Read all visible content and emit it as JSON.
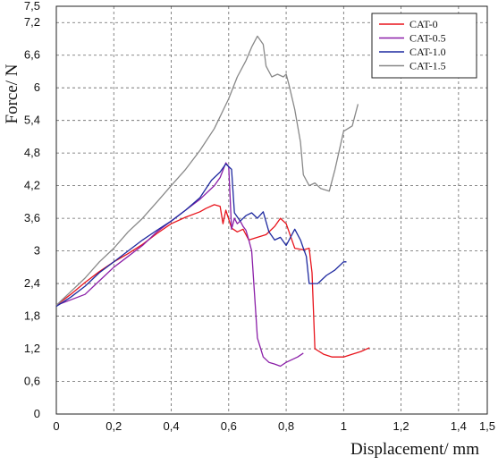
{
  "chart_data": {
    "type": "line",
    "title": "",
    "xlabel": "Displacement/ mm",
    "ylabel": "Force/ N",
    "xlim": [
      0,
      1.5
    ],
    "ylim": [
      0,
      7.5
    ],
    "grid": true,
    "grid_style": "dashed",
    "legend_position": "top-right",
    "x_ticks": [
      0,
      0.2,
      0.4,
      0.6,
      0.8,
      1,
      1.2,
      1.4,
      1.5
    ],
    "x_tick_labels": [
      "0",
      "0,2",
      "0,4",
      "0,6",
      "0,8",
      "1",
      "1,2",
      "1,4",
      "1,5"
    ],
    "y_ticks": [
      0,
      0.6,
      1.2,
      1.8,
      2.4,
      3,
      3.6,
      4.2,
      4.8,
      5.4,
      6,
      6.6,
      7.2,
      7.5
    ],
    "y_tick_labels": [
      "0",
      "0,6",
      "1,2",
      "1,8",
      "2,4",
      "3",
      "3,6",
      "4,2",
      "4,8",
      "5,4",
      "6",
      "6,6",
      "7,2",
      "7,5"
    ],
    "series": [
      {
        "name": "CAT-0",
        "color": "#e8141c",
        "x": [
          0.0,
          0.05,
          0.1,
          0.15,
          0.2,
          0.25,
          0.3,
          0.35,
          0.4,
          0.45,
          0.5,
          0.52,
          0.55,
          0.57,
          0.58,
          0.59,
          0.61,
          0.63,
          0.65,
          0.67,
          0.7,
          0.73,
          0.76,
          0.78,
          0.8,
          0.81,
          0.83,
          0.86,
          0.88,
          0.89,
          0.9,
          0.93,
          0.96,
          1.0,
          1.03,
          1.06,
          1.09
        ],
        "y": [
          2.0,
          2.2,
          2.42,
          2.62,
          2.8,
          2.95,
          3.12,
          3.32,
          3.5,
          3.62,
          3.72,
          3.78,
          3.85,
          3.82,
          3.5,
          3.75,
          3.42,
          3.35,
          3.4,
          3.2,
          3.25,
          3.3,
          3.45,
          3.6,
          3.5,
          3.35,
          3.05,
          3.02,
          3.05,
          2.6,
          1.2,
          1.1,
          1.05,
          1.05,
          1.1,
          1.15,
          1.22
        ]
      },
      {
        "name": "CAT-0.5",
        "color": "#8b1fa8",
        "x": [
          0.0,
          0.05,
          0.1,
          0.15,
          0.2,
          0.25,
          0.3,
          0.35,
          0.4,
          0.45,
          0.5,
          0.55,
          0.57,
          0.59,
          0.6,
          0.61,
          0.62,
          0.63,
          0.64,
          0.65,
          0.66,
          0.67,
          0.68,
          0.69,
          0.7,
          0.72,
          0.74,
          0.76,
          0.78,
          0.8,
          0.82,
          0.84,
          0.86
        ],
        "y": [
          2.0,
          2.1,
          2.2,
          2.45,
          2.7,
          2.9,
          3.1,
          3.35,
          3.55,
          3.75,
          3.95,
          4.2,
          4.35,
          4.62,
          4.55,
          3.4,
          3.6,
          3.5,
          3.55,
          3.45,
          3.38,
          3.2,
          3.0,
          2.2,
          1.4,
          1.05,
          0.95,
          0.92,
          0.88,
          0.95,
          1.0,
          1.05,
          1.12
        ]
      },
      {
        "name": "CAT-1.0",
        "color": "#1f2aa0",
        "x": [
          0.0,
          0.05,
          0.1,
          0.15,
          0.2,
          0.25,
          0.3,
          0.35,
          0.4,
          0.45,
          0.5,
          0.54,
          0.57,
          0.59,
          0.6,
          0.61,
          0.62,
          0.64,
          0.66,
          0.68,
          0.7,
          0.72,
          0.74,
          0.76,
          0.78,
          0.8,
          0.81,
          0.83,
          0.85,
          0.86,
          0.87,
          0.88,
          0.89,
          0.91,
          0.94,
          0.97,
          1.0,
          1.01
        ],
        "y": [
          1.98,
          2.15,
          2.35,
          2.6,
          2.8,
          3.0,
          3.2,
          3.38,
          3.55,
          3.75,
          3.98,
          4.3,
          4.45,
          4.6,
          4.55,
          4.5,
          3.7,
          3.55,
          3.65,
          3.7,
          3.6,
          3.72,
          3.35,
          3.2,
          3.25,
          3.1,
          3.2,
          3.4,
          3.2,
          3.05,
          2.9,
          2.4,
          2.4,
          2.4,
          2.55,
          2.65,
          2.8,
          2.8
        ]
      },
      {
        "name": "CAT-1.5",
        "color": "#888888",
        "x": [
          0.0,
          0.05,
          0.1,
          0.15,
          0.2,
          0.25,
          0.3,
          0.35,
          0.4,
          0.45,
          0.5,
          0.55,
          0.6,
          0.63,
          0.66,
          0.68,
          0.7,
          0.72,
          0.73,
          0.75,
          0.77,
          0.79,
          0.8,
          0.81,
          0.83,
          0.84,
          0.85,
          0.86,
          0.88,
          0.9,
          0.92,
          0.95,
          0.97,
          1.0,
          1.03,
          1.05
        ],
        "y": [
          2.0,
          2.25,
          2.5,
          2.8,
          3.05,
          3.35,
          3.6,
          3.9,
          4.2,
          4.5,
          4.85,
          5.25,
          5.8,
          6.2,
          6.5,
          6.75,
          6.95,
          6.8,
          6.4,
          6.2,
          6.25,
          6.2,
          6.25,
          6.05,
          5.6,
          5.3,
          5.0,
          4.4,
          4.2,
          4.25,
          4.15,
          4.1,
          4.5,
          5.2,
          5.3,
          5.7
        ]
      }
    ]
  }
}
